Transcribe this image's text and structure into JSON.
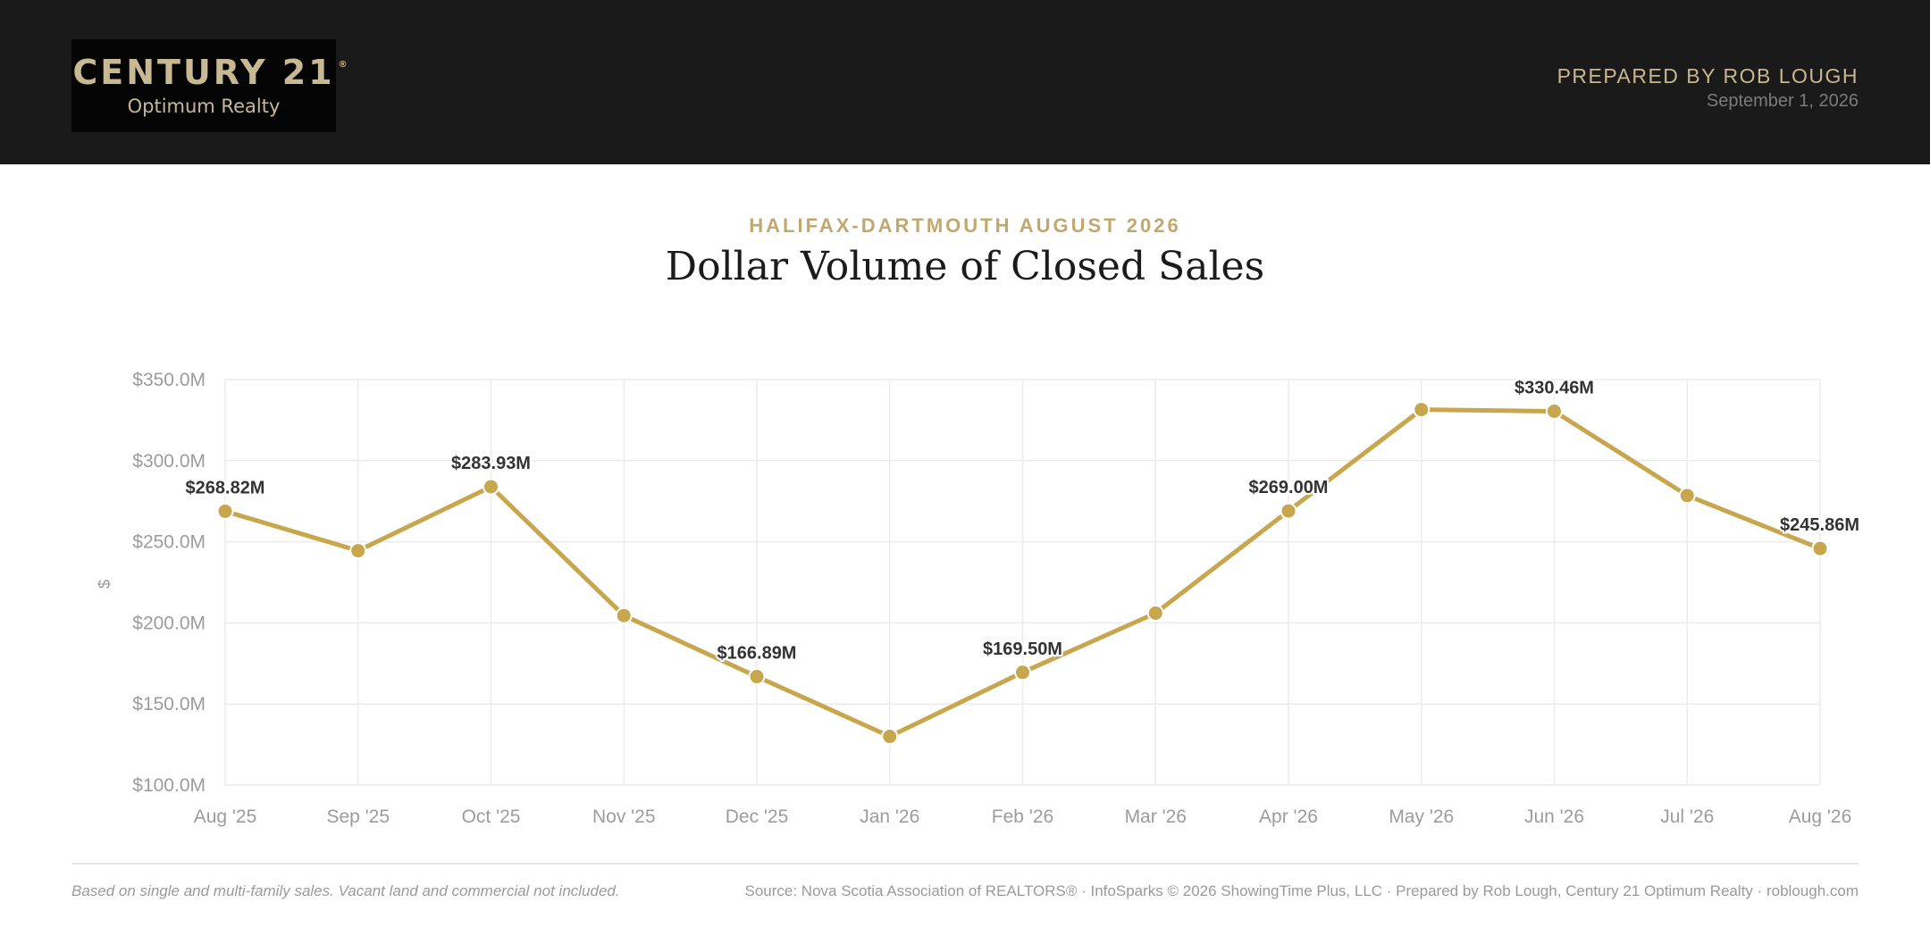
{
  "header": {
    "logo_brand": "CENTURY 21",
    "logo_reg": "®",
    "logo_sub": "Optimum Realty",
    "prepared_by": "PREPARED BY ROB LOUGH",
    "date": "September 1, 2026"
  },
  "eyebrow": "HALIFAX-DARTMOUTH AUGUST 2026",
  "title": "Dollar Volume of Closed Sales",
  "colors": {
    "accent": "#c8a64d",
    "header_bg": "#1a1a1a",
    "gold_text": "#c2a86e"
  },
  "chart_data": {
    "type": "line",
    "categories": [
      "Aug '25",
      "Sep '25",
      "Oct '25",
      "Nov '25",
      "Dec '25",
      "Jan '26",
      "Feb '26",
      "Mar '26",
      "Apr '26",
      "May '26",
      "Jun '26",
      "Jul '26",
      "Aug '26"
    ],
    "series": [
      {
        "values": [
          268.82,
          244.5,
          283.93,
          204.5,
          166.89,
          130.0,
          169.5,
          206.0,
          269.0,
          331.5,
          330.46,
          278.5,
          245.86
        ]
      }
    ],
    "data_labels": [
      {
        "index": 0,
        "text": "$268.82M"
      },
      {
        "index": 2,
        "text": "$283.93M"
      },
      {
        "index": 4,
        "text": "$166.89M"
      },
      {
        "index": 6,
        "text": "$169.50M"
      },
      {
        "index": 8,
        "text": "$269.00M"
      },
      {
        "index": 10,
        "text": "$330.46M"
      },
      {
        "index": 12,
        "text": "$245.86M"
      }
    ],
    "ylabel": "$",
    "ylim": [
      100,
      350
    ],
    "yticks": [
      100,
      150,
      200,
      250,
      300,
      350
    ],
    "ytick_labels": [
      "$100.0M",
      "$150.0M",
      "$200.0M",
      "$250.0M",
      "$300.0M",
      "$350.0M"
    ],
    "grid": true,
    "legend": "none"
  },
  "footer": {
    "note": "Based on single and multi-family sales. Vacant land and commercial not included.",
    "source": "Source: Nova Scotia Association of REALTORS® · InfoSparks © 2026 ShowingTime Plus, LLC · Prepared by Rob Lough, Century 21 Optimum Realty · roblough.com"
  }
}
